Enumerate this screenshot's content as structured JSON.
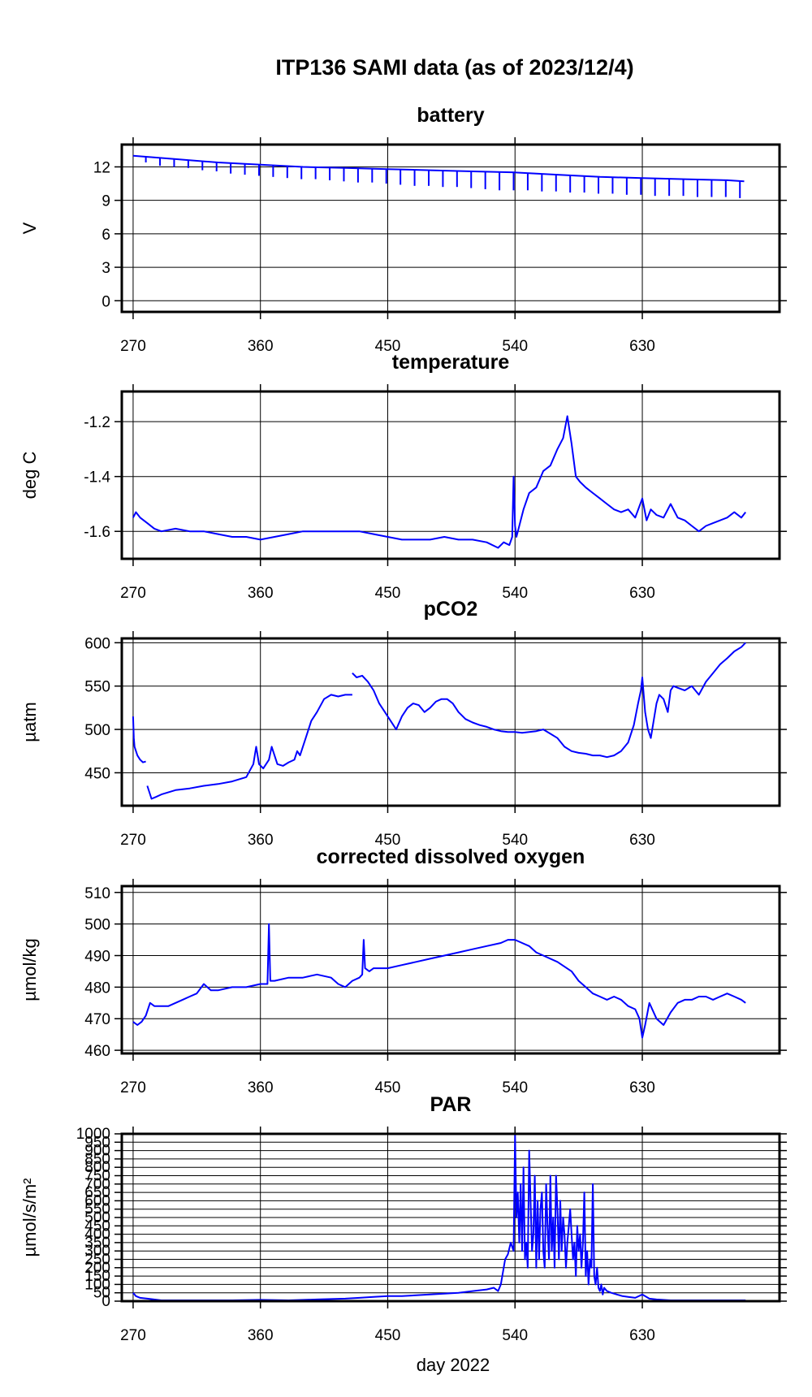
{
  "page": {
    "title": "ITP136 SAMI data (as of 2023/12/4)",
    "xaxis_label": "day 2022"
  },
  "colors": {
    "series": "#0000ff",
    "axes": "#000000",
    "grid": "#000000",
    "background": "#ffffff"
  },
  "chart_data": [
    {
      "type": "line",
      "title": "battery",
      "ylabel": "V",
      "xlabel": "",
      "xlim": [
        262,
        727
      ],
      "ylim": [
        -1,
        14
      ],
      "xticks": [
        270,
        360,
        450,
        540,
        630
      ],
      "yticks": [
        0,
        3,
        6,
        9,
        12
      ],
      "grid": true,
      "series": [
        {
          "x": [
            270,
            300,
            330,
            360,
            390,
            420,
            450,
            480,
            510,
            540,
            570,
            600,
            630,
            660,
            690,
            702
          ],
          "y": [
            13.0,
            12.7,
            12.4,
            12.2,
            12.0,
            11.9,
            11.8,
            11.7,
            11.6,
            11.5,
            11.3,
            11.1,
            11.0,
            10.9,
            10.8,
            10.7
          ]
        }
      ],
      "dips": [
        {
          "x": [
            279,
            289,
            299,
            309,
            319,
            329,
            339,
            349,
            359,
            369,
            379,
            389,
            399,
            409,
            419,
            429,
            439,
            449,
            459,
            469,
            479,
            489,
            499,
            509,
            519,
            529,
            539,
            549,
            559,
            569,
            579,
            589,
            599,
            609,
            619,
            629,
            639,
            649,
            659,
            669,
            679,
            689,
            699
          ],
          "y": [
            12.4,
            12.1,
            12.0,
            11.9,
            11.7,
            11.6,
            11.4,
            11.3,
            11.2,
            11.1,
            11.0,
            10.9,
            10.9,
            10.8,
            10.7,
            10.6,
            10.6,
            10.5,
            10.4,
            10.3,
            10.3,
            10.2,
            10.2,
            10.1,
            10.0,
            9.9,
            9.9,
            9.9,
            9.8,
            9.8,
            9.7,
            9.7,
            9.6,
            9.6,
            9.5,
            9.5,
            9.4,
            9.4,
            9.4,
            9.3,
            9.3,
            9.3,
            9.2
          ]
        }
      ]
    },
    {
      "type": "line",
      "title": "temperature",
      "ylabel": "deg C",
      "xlabel": "",
      "xlim": [
        262,
        727
      ],
      "ylim": [
        -1.7,
        -1.09
      ],
      "xticks": [
        270,
        360,
        450,
        540,
        630
      ],
      "yticks": [
        -1.6,
        -1.4,
        -1.2
      ],
      "grid": true,
      "series": [
        {
          "x": [
            270,
            272,
            275,
            280,
            285,
            290,
            300,
            310,
            320,
            330,
            340,
            350,
            360,
            370,
            380,
            390,
            400,
            410,
            420,
            430,
            440,
            450,
            460,
            470,
            480,
            490,
            500,
            510,
            520,
            528,
            532,
            536,
            538,
            539,
            540,
            541,
            543,
            546,
            550,
            555,
            560,
            565,
            570,
            574,
            577,
            580,
            583,
            586,
            590,
            595,
            600,
            605,
            610,
            615,
            620,
            625,
            630,
            633,
            636,
            640,
            645,
            650,
            655,
            660,
            665,
            670,
            675,
            680,
            685,
            690,
            695,
            700,
            703
          ],
          "y": [
            -1.55,
            -1.53,
            -1.55,
            -1.57,
            -1.59,
            -1.6,
            -1.59,
            -1.6,
            -1.6,
            -1.61,
            -1.62,
            -1.62,
            -1.63,
            -1.62,
            -1.61,
            -1.6,
            -1.6,
            -1.6,
            -1.6,
            -1.6,
            -1.61,
            -1.62,
            -1.63,
            -1.63,
            -1.63,
            -1.62,
            -1.63,
            -1.63,
            -1.64,
            -1.66,
            -1.64,
            -1.65,
            -1.62,
            -1.4,
            -1.58,
            -1.62,
            -1.58,
            -1.52,
            -1.46,
            -1.44,
            -1.38,
            -1.36,
            -1.3,
            -1.26,
            -1.18,
            -1.28,
            -1.4,
            -1.42,
            -1.44,
            -1.46,
            -1.48,
            -1.5,
            -1.52,
            -1.53,
            -1.52,
            -1.55,
            -1.48,
            -1.56,
            -1.52,
            -1.54,
            -1.55,
            -1.5,
            -1.55,
            -1.56,
            -1.58,
            -1.6,
            -1.58,
            -1.57,
            -1.56,
            -1.55,
            -1.53,
            -1.55,
            -1.53
          ]
        }
      ]
    },
    {
      "type": "line",
      "title": "pCO2",
      "ylabel": "µatm",
      "xlabel": "",
      "xlim": [
        262,
        727
      ],
      "ylim": [
        412,
        605
      ],
      "xticks": [
        270,
        360,
        450,
        540,
        630
      ],
      "yticks": [
        450,
        500,
        550,
        600
      ],
      "grid": true,
      "series": [
        {
          "x": [
            270,
            270.5,
            271,
            273,
            275,
            277,
            279
          ],
          "y": [
            515,
            490,
            480,
            470,
            465,
            462,
            463
          ]
        },
        {
          "x": [
            280,
            283,
            286,
            290,
            300,
            310,
            320,
            330,
            340,
            350,
            355,
            357,
            359,
            362,
            366,
            368,
            372,
            376,
            380,
            384,
            386,
            388,
            392,
            396,
            400,
            405,
            410,
            415,
            420,
            425
          ],
          "y": [
            435,
            420,
            422,
            425,
            430,
            432,
            435,
            437,
            440,
            445,
            460,
            480,
            460,
            455,
            465,
            480,
            460,
            458,
            462,
            465,
            475,
            470,
            490,
            510,
            520,
            535,
            540,
            538,
            540,
            540
          ]
        },
        {
          "x": [
            425,
            428,
            432,
            436,
            440,
            444,
            448,
            452,
            456,
            460,
            464,
            468,
            472,
            476,
            480,
            484,
            488,
            492,
            496,
            500,
            505,
            510,
            515,
            520,
            525,
            530,
            535,
            540,
            545,
            550,
            555,
            560,
            565,
            570,
            575,
            580,
            585,
            590,
            595,
            600,
            605,
            610,
            615,
            620,
            624,
            627,
            629,
            630,
            632,
            634,
            636,
            638,
            640,
            642,
            645,
            648,
            650,
            652,
            655,
            660,
            665,
            670,
            675,
            680,
            685,
            690,
            695,
            700,
            703
          ],
          "y": [
            565,
            560,
            562,
            555,
            545,
            530,
            520,
            510,
            500,
            515,
            525,
            530,
            528,
            520,
            525,
            532,
            535,
            535,
            530,
            520,
            512,
            508,
            505,
            503,
            500,
            498,
            497,
            497,
            496,
            497,
            498,
            500,
            495,
            490,
            480,
            475,
            473,
            472,
            470,
            470,
            468,
            470,
            475,
            485,
            505,
            530,
            545,
            560,
            520,
            500,
            490,
            510,
            530,
            540,
            535,
            520,
            545,
            550,
            548,
            545,
            550,
            540,
            555,
            565,
            575,
            582,
            590,
            595,
            600
          ]
        }
      ]
    },
    {
      "type": "line",
      "title": "corrected dissolved oxygen",
      "ylabel": "µmol/kg",
      "xlabel": "",
      "xlim": [
        262,
        727
      ],
      "ylim": [
        459,
        512
      ],
      "xticks": [
        270,
        360,
        450,
        540,
        630
      ],
      "yticks": [
        460,
        470,
        480,
        490,
        500,
        510
      ],
      "grid": true,
      "series": [
        {
          "x": [
            270,
            273,
            276,
            279,
            282,
            285,
            290,
            295,
            300,
            305,
            310,
            315,
            320,
            325,
            330,
            340,
            350,
            360,
            365,
            366,
            367,
            370,
            380,
            390,
            400,
            410,
            415,
            420,
            425,
            430,
            432,
            433,
            434,
            437,
            440,
            450,
            460,
            470,
            480,
            490,
            500,
            510,
            520,
            530,
            535,
            540,
            545,
            550,
            555,
            560,
            570,
            580,
            585,
            590,
            595,
            600,
            605,
            610,
            615,
            620,
            625,
            628,
            630,
            632,
            635,
            640,
            645,
            650,
            655,
            660,
            665,
            670,
            675,
            680,
            685,
            690,
            695,
            700,
            703
          ],
          "y": [
            469,
            468,
            469,
            471,
            475,
            474,
            474,
            474,
            475,
            476,
            477,
            478,
            481,
            479,
            479,
            480,
            480,
            481,
            481,
            500,
            482,
            482,
            483,
            483,
            484,
            483,
            481,
            480,
            482,
            483,
            484,
            495,
            486,
            485,
            486,
            486,
            487,
            488,
            489,
            490,
            491,
            492,
            493,
            494,
            495,
            495,
            494,
            493,
            491,
            490,
            488,
            485,
            482,
            480,
            478,
            477,
            476,
            477,
            476,
            474,
            473,
            470,
            464,
            468,
            475,
            470,
            468,
            472,
            475,
            476,
            476,
            477,
            477,
            476,
            477,
            478,
            477,
            476,
            475
          ]
        }
      ]
    },
    {
      "type": "line",
      "title": "PAR",
      "ylabel": "µmol/s/m²",
      "xlabel": "day 2022",
      "xlim": [
        262,
        727
      ],
      "ylim": [
        0,
        1000
      ],
      "xticks": [
        270,
        360,
        450,
        540,
        630
      ],
      "yticks": [
        0,
        50,
        100,
        150,
        200,
        250,
        300,
        350,
        400,
        450,
        500,
        550,
        600,
        650,
        700,
        750,
        800,
        850,
        900,
        950,
        1000
      ],
      "ytick_labels": [
        "0",
        "50",
        "100",
        "150",
        "200",
        "250",
        "300",
        "350",
        "400",
        "450",
        "500",
        "550",
        "600",
        "650",
        "700",
        "750",
        "800",
        "850",
        "900",
        "950",
        "1000"
      ],
      "grid": true,
      "series": [
        {
          "x": [
            270,
            272,
            275,
            280,
            290,
            300,
            320,
            340,
            360,
            380,
            400,
            420,
            430,
            440,
            450,
            460,
            470,
            480,
            490,
            500,
            510,
            520,
            525,
            528,
            530,
            533,
            535,
            537,
            539,
            540,
            541,
            542,
            543,
            544,
            545,
            546,
            547,
            548,
            549,
            550,
            551,
            552,
            553,
            554,
            555,
            556,
            557,
            558,
            559,
            560,
            561,
            562,
            563,
            564,
            565,
            566,
            567,
            568,
            569,
            570,
            571,
            572,
            573,
            574,
            575,
            576,
            577,
            578,
            579,
            580,
            581,
            582,
            583,
            584,
            585,
            586,
            587,
            588,
            589,
            590,
            591,
            592,
            593,
            594,
            595,
            596,
            597,
            598,
            599,
            600,
            601,
            602,
            603,
            605,
            608,
            612,
            616,
            620,
            625,
            630,
            635,
            640,
            650,
            660,
            670,
            680,
            690,
            700,
            703
          ],
          "y": [
            50,
            30,
            20,
            15,
            5,
            5,
            5,
            5,
            8,
            5,
            10,
            15,
            20,
            25,
            30,
            30,
            35,
            40,
            45,
            50,
            60,
            70,
            80,
            60,
            100,
            250,
            280,
            350,
            300,
            1000,
            500,
            650,
            350,
            700,
            300,
            800,
            250,
            350,
            200,
            900,
            600,
            300,
            400,
            750,
            200,
            600,
            250,
            550,
            650,
            300,
            200,
            700,
            450,
            250,
            750,
            300,
            500,
            200,
            750,
            550,
            250,
            600,
            300,
            500,
            400,
            200,
            350,
            450,
            550,
            400,
            250,
            350,
            150,
            450,
            300,
            400,
            200,
            350,
            650,
            150,
            300,
            100,
            250,
            200,
            700,
            150,
            100,
            200,
            80,
            60,
            100,
            40,
            80,
            60,
            50,
            40,
            30,
            25,
            20,
            40,
            15,
            10,
            5,
            5,
            5,
            5,
            5,
            5,
            5
          ]
        }
      ]
    }
  ]
}
